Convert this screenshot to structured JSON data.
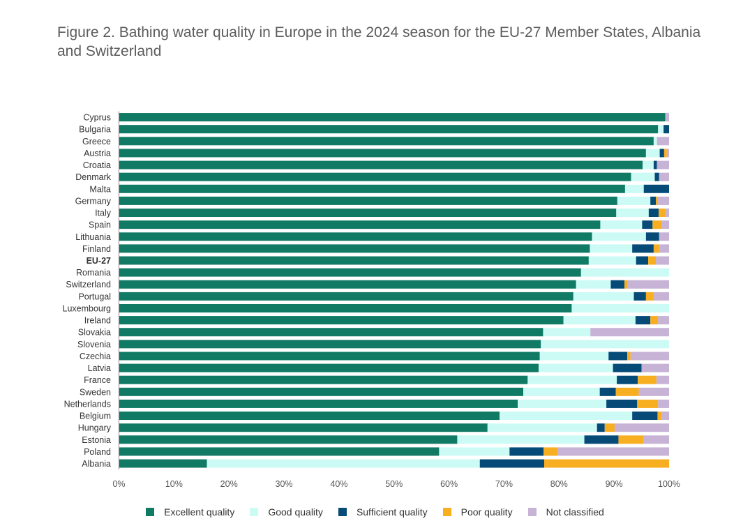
{
  "title": "Figure 2. Bathing water quality in Europe in the 2024 season for the EU-27 Member States, Albania and Switzerland",
  "chart_data": {
    "type": "bar",
    "orientation": "horizontal",
    "stacked": true,
    "title": "Figure 2. Bathing water quality in Europe in the 2024 season for the EU-27 Member States, Albania and Switzerland",
    "xlabel": "",
    "ylabel": "",
    "xlim": [
      0,
      100
    ],
    "x_ticks": [
      "0%",
      "10%",
      "20%",
      "30%",
      "40%",
      "50%",
      "60%",
      "70%",
      "80%",
      "90%",
      "100%"
    ],
    "grid": false,
    "legend_position": "bottom",
    "highlight_category": "EU-27",
    "categories": [
      "Cyprus",
      "Bulgaria",
      "Greece",
      "Austria",
      "Croatia",
      "Denmark",
      "Malta",
      "Germany",
      "Italy",
      "Spain",
      "Lithuania",
      "Finland",
      "EU-27",
      "Romania",
      "Switzerland",
      "Portugal",
      "Luxembourg",
      "Ireland",
      "Slovakia",
      "Slovenia",
      "Czechia",
      "Latvia",
      "France",
      "Sweden",
      "Netherlands",
      "Belgium",
      "Hungary",
      "Estonia",
      "Poland",
      "Albania"
    ],
    "series": [
      {
        "name": "Excellent quality",
        "color": "#117a65",
        "values": [
          99.3,
          98.0,
          97.2,
          95.8,
          95.2,
          93.1,
          92.0,
          90.6,
          90.4,
          87.5,
          86.0,
          85.6,
          85.4,
          84.0,
          83.1,
          82.6,
          82.3,
          80.8,
          77.1,
          76.7,
          76.5,
          76.3,
          74.3,
          73.5,
          72.5,
          69.2,
          67.0,
          61.5,
          58.2,
          16.0
        ]
      },
      {
        "name": "Good quality",
        "color": "#ccfbf5",
        "values": [
          0.0,
          1.0,
          0.6,
          2.5,
          2.0,
          4.3,
          3.4,
          6.0,
          5.9,
          7.6,
          9.8,
          7.7,
          8.6,
          16.0,
          6.3,
          11.0,
          17.7,
          13.1,
          8.6,
          23.3,
          12.5,
          13.5,
          16.2,
          13.9,
          16.1,
          24.1,
          19.9,
          23.1,
          12.8,
          49.6
        ]
      },
      {
        "name": "Sufficient quality",
        "color": "#064a78",
        "values": [
          0.0,
          1.0,
          0.0,
          0.8,
          0.6,
          0.8,
          4.6,
          1.0,
          1.8,
          1.9,
          2.4,
          3.9,
          2.2,
          0.0,
          2.5,
          2.2,
          0.0,
          2.7,
          0.0,
          0.0,
          3.4,
          5.2,
          3.8,
          2.9,
          5.6,
          4.6,
          1.4,
          6.2,
          6.2,
          11.7
        ]
      },
      {
        "name": "Poor quality",
        "color": "#f8ae21",
        "values": [
          0.0,
          0.0,
          0.0,
          0.5,
          0.0,
          0.0,
          0.0,
          0.4,
          1.2,
          1.7,
          0.0,
          1.0,
          1.4,
          0.0,
          0.6,
          1.4,
          0.0,
          1.4,
          0.0,
          0.0,
          0.6,
          0.0,
          3.4,
          4.2,
          3.8,
          0.8,
          1.8,
          4.6,
          2.6,
          22.7
        ]
      },
      {
        "name": "Not classified",
        "color": "#c6b3d6",
        "values": [
          0.7,
          0.0,
          2.2,
          0.4,
          2.2,
          1.8,
          0.0,
          2.0,
          0.7,
          1.3,
          1.8,
          1.8,
          2.4,
          0.0,
          7.5,
          2.8,
          0.0,
          2.0,
          14.3,
          0.0,
          7.0,
          5.0,
          2.3,
          5.5,
          2.0,
          1.3,
          9.9,
          4.6,
          20.2,
          0.0
        ]
      }
    ]
  }
}
